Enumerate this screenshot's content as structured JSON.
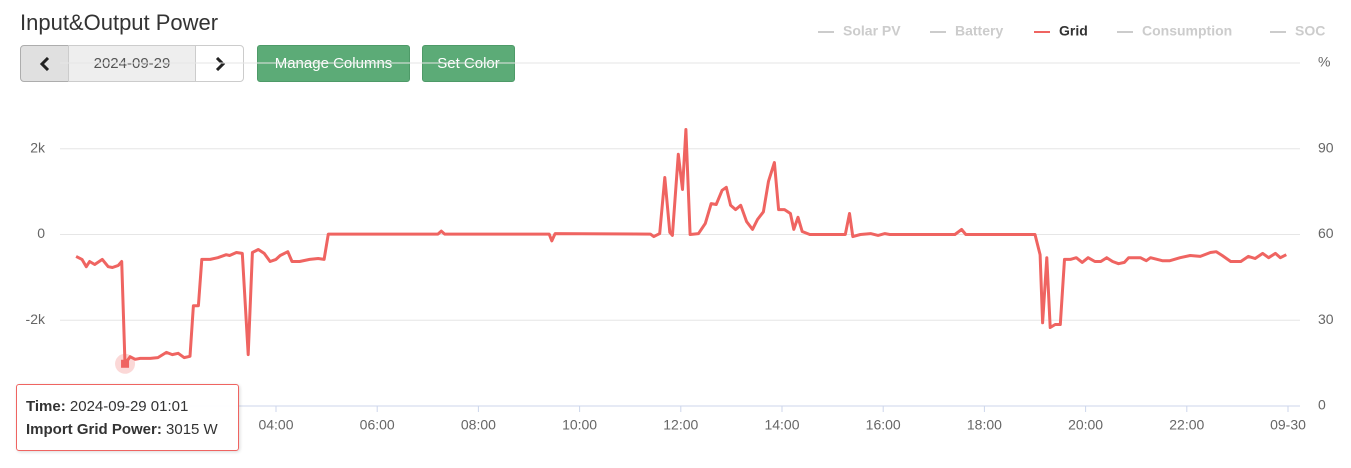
{
  "header": {
    "title": "Input&Output Power"
  },
  "controls": {
    "date": "2024-09-29",
    "buttons": [
      "Manage Columns",
      "Set Color"
    ]
  },
  "tooltip": {
    "time_label": "Time:",
    "time": "2024-09-29 01:01",
    "power_label": "Import Grid Power:",
    "power": "3015 W"
  },
  "chart_data": {
    "type": "line",
    "legend_hidden_color": "#cccccc",
    "series": [
      {
        "name": "Solar PV",
        "visible": false
      },
      {
        "name": "Battery",
        "visible": false
      },
      {
        "name": "Grid",
        "visible": true,
        "color": "#ef6461",
        "x": [
          "00:03",
          "00:10",
          "00:15",
          "00:19",
          "00:25",
          "00:34",
          "00:41",
          "00:46",
          "00:53",
          "00:57",
          "01:01",
          "01:07",
          "01:13",
          "01:19",
          "01:31",
          "01:40",
          "01:50",
          "01:57",
          "02:04",
          "02:11",
          "02:18",
          "02:22",
          "02:28",
          "02:32",
          "02:42",
          "02:51",
          "03:01",
          "03:05",
          "03:13",
          "03:20",
          "03:27",
          "03:32",
          "03:39",
          "03:46",
          "03:53",
          "04:00",
          "04:05",
          "04:14",
          "04:19",
          "04:28",
          "04:40",
          "04:50",
          "04:57",
          "05:02",
          "07:12",
          "07:16",
          "07:20",
          "09:24",
          "09:27",
          "09:31",
          "11:24",
          "11:28",
          "11:35",
          "11:41",
          "11:47",
          "11:50",
          "11:57",
          "12:02",
          "12:06",
          "12:11",
          "12:21",
          "12:29",
          "12:36",
          "12:42",
          "12:49",
          "12:54",
          "12:59",
          "13:05",
          "13:11",
          "13:18",
          "13:25",
          "13:31",
          "13:38",
          "13:44",
          "13:51",
          "13:56",
          "14:03",
          "14:10",
          "14:14",
          "14:19",
          "14:24",
          "14:33",
          "15:15",
          "15:20",
          "15:24",
          "15:33",
          "15:45",
          "15:54",
          "16:02",
          "16:08",
          "17:25",
          "17:33",
          "17:38",
          "19:00",
          "19:06",
          "19:09",
          "19:14",
          "19:18",
          "19:24",
          "19:30",
          "19:35",
          "19:42",
          "19:49",
          "19:56",
          "20:03",
          "20:11",
          "20:18",
          "20:25",
          "20:32",
          "20:39",
          "20:46",
          "20:51",
          "21:05",
          "21:12",
          "21:17",
          "21:31",
          "21:40",
          "21:52",
          "22:04",
          "22:16",
          "22:28",
          "22:35",
          "22:42",
          "22:52",
          "23:04",
          "23:13",
          "23:21",
          "23:30",
          "23:37",
          "23:45",
          "23:51",
          "23:58"
        ],
        "values": [
          -510,
          -580,
          -750,
          -630,
          -700,
          -580,
          -750,
          -770,
          -720,
          -630,
          -3015,
          -2850,
          -2910,
          -2890,
          -2890,
          -2870,
          -2750,
          -2800,
          -2770,
          -2870,
          -2840,
          -1660,
          -1660,
          -580,
          -580,
          -540,
          -470,
          -490,
          -420,
          -440,
          -2800,
          -420,
          -350,
          -440,
          -630,
          -580,
          -490,
          -400,
          -630,
          -630,
          -580,
          -560,
          -580,
          10,
          10,
          80,
          10,
          10,
          -150,
          20,
          10,
          -50,
          20,
          1330,
          50,
          -20,
          1870,
          1050,
          2450,
          0,
          20,
          260,
          720,
          700,
          1030,
          1100,
          680,
          580,
          680,
          300,
          120,
          350,
          530,
          1240,
          1680,
          580,
          580,
          490,
          120,
          400,
          70,
          0,
          0,
          490,
          -50,
          0,
          20,
          -20,
          20,
          0,
          0,
          120,
          0,
          0,
          -470,
          -2060,
          -540,
          -2170,
          -2100,
          -2100,
          -580,
          -580,
          -540,
          -650,
          -540,
          -630,
          -630,
          -540,
          -630,
          -680,
          -650,
          -540,
          -540,
          -610,
          -540,
          -610,
          -610,
          -540,
          -490,
          -510,
          -420,
          -400,
          -490,
          -630,
          -630,
          -510,
          -560,
          -440,
          -540,
          -440,
          -540,
          -470
        ]
      },
      {
        "name": "Consumption",
        "visible": false
      },
      {
        "name": "SOC",
        "visible": false
      }
    ],
    "xlim": [
      "00:00",
      "24:00"
    ],
    "xticks": [
      "04:00",
      "06:00",
      "08:00",
      "10:00",
      "12:00",
      "14:00",
      "16:00",
      "18:00",
      "20:00",
      "22:00",
      {
        "value": "24:00",
        "label": "09-30"
      }
    ],
    "ylim": [
      -4000,
      4000
    ],
    "yticks": [
      {
        "value": -2000,
        "label": "-2k"
      },
      0,
      {
        "value": 2000,
        "label": "2k"
      }
    ],
    "y2label": "%",
    "y2lim": [
      0,
      120
    ],
    "y2ticks": [
      0,
      30,
      60,
      90
    ],
    "grid": true
  }
}
